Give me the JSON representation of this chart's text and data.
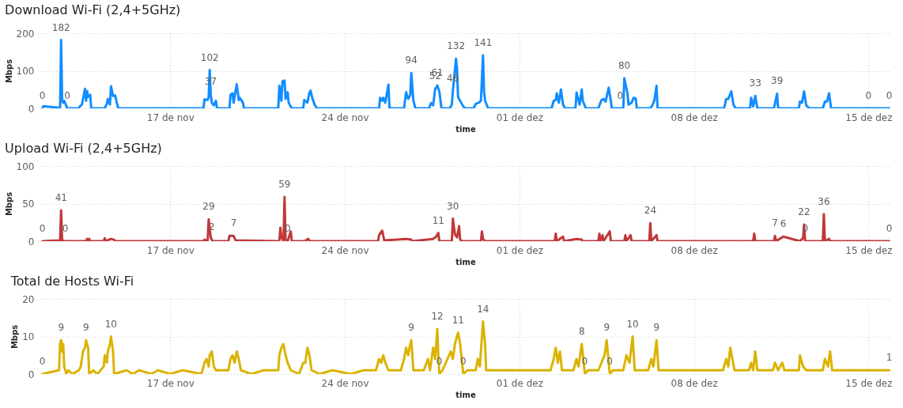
{
  "chart_data": [
    {
      "type": "line",
      "title": "Download Wi-Fi (2,4+5GHz)",
      "xlabel": "time",
      "ylabel": "Mbps",
      "color": "#118dff",
      "grid": true,
      "ylim": [
        0,
        200
      ],
      "yticks": [
        0,
        100,
        200
      ],
      "xlim": [
        "--11-11T19:00",
        "--12-15T21:00"
      ],
      "xticks": [
        {
          "value": "--11-17",
          "label": "17 de nov"
        },
        {
          "value": "--11-24",
          "label": "24 de nov"
        },
        {
          "value": "--12-01",
          "label": "01 de dez"
        },
        {
          "value": "--12-08",
          "label": "08 de dez"
        },
        {
          "value": "--12-15",
          "label": "15 de dez"
        }
      ],
      "x": [
        "--11-11T21:00",
        "--11-11T22:00",
        "--11-12T14:00",
        "--11-12T15:00",
        "--11-12T16:00",
        "--11-12T17:00",
        "--11-12T18:00",
        "--11-12T21:00",
        "--11-13T08:00",
        "--11-13T09:00",
        "--11-13T11:00",
        "--11-13T14:00",
        "--11-13T15:00",
        "--11-13T16:00",
        "--11-13T17:00",
        "--11-13T19:00",
        "--11-13T20:00",
        "--11-14T09:00",
        "--11-14T11:00",
        "--11-14T12:00",
        "--11-14T14:00",
        "--11-14T15:00",
        "--11-14T17:00",
        "--11-14T19:00",
        "--11-14T21:00",
        "--11-14T22:00",
        "--11-18T08:00",
        "--11-18T09:00",
        "--11-18T12:00",
        "--11-18T13:00",
        "--11-18T14:00",
        "--11-18T15:00",
        "--11-18T16:00",
        "--11-18T18:00",
        "--11-18T20:00",
        "--11-18T21:00",
        "--11-19T09:00",
        "--11-19T10:00",
        "--11-19T12:00",
        "--11-19T13:00",
        "--11-19T16:00",
        "--11-19T18:00",
        "--11-19T19:00",
        "--11-19T22:00",
        "--11-19T23:00",
        "--11-21T08:00",
        "--11-21T09:00",
        "--11-21T11:00",
        "--11-21T12:00",
        "--11-21T14:00",
        "--11-21T15:00",
        "--11-21T17:00",
        "--11-21T18:00",
        "--11-21T21:00",
        "--11-22T08:00",
        "--11-22T09:00",
        "--11-22T12:00",
        "--11-22T14:00",
        "--11-22T15:00",
        "--11-22T17:00",
        "--11-22T19:00",
        "--11-22T21:00",
        "--11-25T09:00",
        "--11-25T10:00",
        "--11-25T12:00",
        "--11-25T13:00",
        "--11-25T15:00",
        "--11-25T18:00",
        "--11-25T19:00",
        "--11-26T09:00",
        "--11-26T11:00",
        "--11-26T13:00",
        "--11-26T15:00",
        "--11-26T16:00",
        "--11-26T18:00",
        "--11-26T20:00",
        "--11-27T09:00",
        "--11-27T11:00",
        "--11-27T13:00",
        "--11-27T15:00",
        "--11-27T16:00",
        "--11-27T17:00",
        "--11-27T19:00",
        "--11-27T21:00",
        "--11-28T05:00",
        "--11-28T07:00",
        "--11-28T08:00",
        "--11-28T11:00",
        "--11-28T12:00",
        "--11-28T13:00",
        "--11-28T16:00",
        "--11-28T18:00",
        "--11-28T20:00",
        "--11-29T04:00",
        "--11-29T06:00",
        "--11-29T09:00",
        "--11-29T11:00",
        "--11-29T13:00",
        "--11-29T14:00",
        "--11-29T15:00",
        "--11-29T18:00",
        "--12-02T07:00",
        "--12-02T09:00",
        "--12-02T11:00",
        "--12-02T12:00",
        "--12-02T14:00",
        "--12-02T16:00",
        "--12-02T18:00",
        "--12-02T20:00",
        "--12-03T06:00",
        "--12-03T07:00",
        "--12-03T10:00",
        "--12-03T12:00",
        "--12-03T13:00",
        "--12-03T16:00",
        "--12-04T04:00",
        "--12-04T07:00",
        "--12-04T09:00",
        "--12-04T11:00",
        "--12-04T14:00",
        "--12-04T16:00",
        "--12-04T17:00",
        "--12-05T01:00",
        "--12-05T04:00",
        "--12-05T05:00",
        "--12-05T08:00",
        "--12-05T09:00",
        "--12-05T12:00",
        "--12-05T14:00",
        "--12-05T16:00",
        "--12-05T17:00",
        "--12-06T06:00",
        "--12-06T08:00",
        "--12-06T10:00",
        "--12-06T12:00",
        "--12-06T13:00",
        "--12-09T05:00",
        "--12-09T07:00",
        "--12-09T09:00",
        "--12-09T12:00",
        "--12-09T14:00",
        "--12-09T16:00",
        "--12-10T06:00",
        "--12-10T07:00",
        "--12-10T09:00",
        "--12-10T11:00",
        "--12-10T13:00",
        "--12-11T05:00",
        "--12-11T08:00",
        "--12-11T09:00",
        "--12-12T05:00",
        "--12-12T06:00",
        "--12-12T08:00",
        "--12-12T10:00",
        "--12-12T12:00",
        "--12-12T15:00",
        "--12-13T04:00",
        "--12-13T06:00",
        "--12-13T08:00",
        "--12-13T10:00",
        "--12-13T12:00",
        "--12-15T00:00",
        "--12-15T20:00"
      ],
      "values": [
        0,
        6,
        1,
        182,
        20,
        15,
        20,
        0,
        0,
        5,
        10,
        52,
        20,
        46,
        30,
        36,
        0,
        0,
        12,
        25,
        10,
        59,
        33,
        34,
        10,
        0,
        0,
        24,
        22,
        30,
        102,
        37,
        15,
        8,
        20,
        0,
        0,
        36,
        40,
        15,
        64,
        22,
        28,
        15,
        0,
        0,
        60,
        20,
        72,
        74,
        25,
        43,
        15,
        0,
        0,
        22,
        15,
        42,
        47,
        25,
        10,
        0,
        0,
        28,
        20,
        28,
        15,
        63,
        0,
        0,
        43,
        25,
        35,
        94,
        20,
        0,
        0,
        14,
        8,
        52,
        55,
        61,
        45,
        0,
        0,
        10,
        46,
        132,
        105,
        30,
        15,
        5,
        0,
        0,
        12,
        15,
        20,
        141,
        45,
        20,
        0,
        0,
        20,
        22,
        40,
        15,
        50,
        10,
        0,
        0,
        42,
        10,
        50,
        20,
        0,
        0,
        22,
        25,
        18,
        55,
        20,
        0,
        0,
        0,
        80,
        40,
        10,
        15,
        28,
        26,
        0,
        0,
        8,
        22,
        60,
        0,
        0,
        25,
        25,
        45,
        10,
        0,
        0,
        28,
        5,
        33,
        0,
        0,
        39,
        0,
        0,
        18,
        15,
        45,
        8,
        0,
        0,
        18,
        18,
        40,
        0,
        0,
        0
      ],
      "value_labels": [
        "0",
        null,
        null,
        "182",
        null,
        null,
        null,
        "0",
        null,
        null,
        null,
        null,
        null,
        null,
        null,
        null,
        null,
        null,
        null,
        null,
        null,
        null,
        null,
        null,
        null,
        null,
        null,
        null,
        null,
        null,
        "102",
        "37",
        null,
        null,
        null,
        null,
        null,
        null,
        null,
        null,
        null,
        null,
        null,
        null,
        null,
        null,
        null,
        null,
        null,
        null,
        null,
        null,
        null,
        null,
        null,
        null,
        null,
        null,
        null,
        null,
        null,
        null,
        null,
        null,
        null,
        null,
        null,
        null,
        null,
        null,
        null,
        null,
        null,
        "94",
        null,
        null,
        null,
        null,
        null,
        "52",
        null,
        "61",
        null,
        null,
        null,
        null,
        "46",
        "132",
        null,
        null,
        null,
        null,
        null,
        null,
        null,
        null,
        null,
        "141",
        null,
        null,
        null,
        null,
        null,
        null,
        null,
        null,
        null,
        null,
        null,
        null,
        null,
        null,
        null,
        null,
        null,
        null,
        null,
        null,
        null,
        null,
        null,
        null,
        "0",
        null,
        "80",
        null,
        null,
        null,
        null,
        null,
        null,
        null,
        null,
        null,
        null,
        null,
        null,
        null,
        null,
        null,
        null,
        null,
        null,
        null,
        null,
        "33",
        null,
        null,
        "39",
        null,
        null,
        null,
        null,
        null,
        null,
        null,
        null,
        null,
        null,
        null,
        null,
        "0",
        "0"
      ]
    },
    {
      "type": "line",
      "title": "Upload Wi-Fi (2,4+5GHz)",
      "xlabel": "time",
      "ylabel": "Mbps",
      "color": "#c0383a",
      "grid": true,
      "ylim": [
        0,
        100
      ],
      "yticks": [
        0,
        50,
        100
      ],
      "xlim": [
        "--11-11T19:00",
        "--12-15T21:00"
      ],
      "xticks": [
        {
          "value": "--11-17",
          "label": "17 de nov"
        },
        {
          "value": "--11-24",
          "label": "24 de nov"
        },
        {
          "value": "--12-01",
          "label": "01 de dez"
        },
        {
          "value": "--12-08",
          "label": "08 de dez"
        },
        {
          "value": "--12-15",
          "label": "15 de dez"
        }
      ],
      "x": [
        "--11-11T21:00",
        "--11-12T14:00",
        "--11-12T15:00",
        "--11-12T16:00",
        "--11-12T19:00",
        "--11-13T15:00",
        "--11-13T16:00",
        "--11-13T17:00",
        "--11-13T18:00",
        "--11-13T19:00",
        "--11-14T08:00",
        "--11-14T09:00",
        "--11-14T10:00",
        "--11-14T15:00",
        "--11-14T18:00",
        "--11-14T19:00",
        "--11-18T08:00",
        "--11-18T09:00",
        "--11-18T12:00",
        "--11-18T13:00",
        "--11-18T15:00",
        "--11-18T16:00",
        "--11-18T17:00",
        "--11-19T08:00",
        "--11-19T09:00",
        "--11-19T11:00",
        "--11-19T13:00",
        "--11-19T15:00",
        "--11-21T09:00",
        "--11-21T10:00",
        "--11-21T11:00",
        "--11-21T13:00",
        "--11-21T14:00",
        "--11-21T15:00",
        "--11-21T17:00",
        "--11-21T20:00",
        "--11-21T21:00",
        "--11-22T09:00",
        "--11-22T13:00",
        "--11-22T14:00",
        "--11-25T08:00",
        "--11-25T09:00",
        "--11-25T12:00",
        "--11-25T14:00",
        "--11-26T11:00",
        "--11-26T16:00",
        "--11-26T17:00",
        "--11-27T13:00",
        "--11-27T16:00",
        "--11-27T18:00",
        "--11-27T19:00",
        "--11-27T20:00",
        "--11-28T07:00",
        "--11-28T08:00",
        "--11-28T10:00",
        "--11-28T12:00",
        "--11-28T14:00",
        "--11-28T15:00",
        "--11-28T17:00",
        "--11-29T11:00",
        "--11-29T12:00",
        "--11-29T13:00",
        "--11-29T15:00",
        "--11-29T16:00",
        "--12-02T10:00",
        "--12-02T11:00",
        "--12-02T12:00",
        "--12-02T18:00",
        "--12-02T19:00",
        "--12-03T07:00",
        "--12-03T12:00",
        "--12-03T13:00",
        "--12-04T04:00",
        "--12-04T05:00",
        "--12-04T06:00",
        "--12-04T08:00",
        "--12-04T09:00",
        "--12-04T15:00",
        "--12-04T16:00",
        "--12-05T05:00",
        "--12-05T06:00",
        "--12-05T07:00",
        "--12-05T11:00",
        "--12-05T12:00",
        "--12-06T05:00",
        "--12-06T06:00",
        "--12-06T07:00",
        "--12-06T12:00",
        "--12-06T13:00",
        "--12-10T09:00",
        "--12-10T10:00",
        "--12-10T11:00",
        "--12-11T05:00",
        "--12-11T06:00",
        "--12-11T07:00",
        "--12-11T14:00",
        "--12-12T06:00",
        "--12-12T09:00",
        "--12-12T10:00",
        "--12-12T11:00",
        "--12-13T04:00",
        "--12-13T05:00",
        "--12-13T06:00",
        "--12-13T10:00",
        "--12-13T11:00",
        "--12-15T20:00"
      ],
      "values": [
        0,
        1,
        41,
        1,
        0,
        0,
        3,
        0,
        3,
        0,
        0,
        4,
        0,
        3,
        2,
        0,
        0,
        2,
        0,
        29,
        5,
        2,
        0,
        0,
        7,
        7,
        7,
        1,
        0,
        18,
        5,
        0,
        59,
        2,
        0,
        13,
        0,
        0,
        3,
        0,
        0,
        8,
        14,
        1,
        3,
        2,
        0,
        3,
        6,
        11,
        0,
        0,
        0,
        30,
        9,
        5,
        20,
        2,
        0,
        0,
        13,
        3,
        0,
        0,
        0,
        10,
        0,
        6,
        0,
        3,
        2,
        0,
        0,
        10,
        0,
        8,
        0,
        13,
        0,
        0,
        8,
        0,
        8,
        0,
        0,
        24,
        0,
        8,
        0,
        0,
        10,
        0,
        0,
        7,
        0,
        6,
        0,
        4,
        22,
        0,
        0,
        36,
        0,
        3,
        0,
        0
      ],
      "value_labels": [
        "0",
        null,
        "41",
        null,
        "0",
        null,
        null,
        null,
        null,
        null,
        null,
        null,
        null,
        null,
        null,
        null,
        null,
        null,
        null,
        "29",
        null,
        "2",
        null,
        null,
        null,
        null,
        "7",
        null,
        null,
        null,
        null,
        null,
        "59",
        null,
        "0",
        null,
        null,
        null,
        null,
        null,
        null,
        null,
        null,
        null,
        null,
        null,
        null,
        null,
        null,
        "11",
        null,
        null,
        null,
        "30",
        null,
        null,
        null,
        null,
        null,
        null,
        null,
        null,
        null,
        null,
        null,
        null,
        null,
        null,
        null,
        null,
        null,
        null,
        null,
        null,
        null,
        null,
        null,
        null,
        null,
        null,
        null,
        null,
        null,
        null,
        null,
        "24",
        null,
        null,
        null,
        null,
        null,
        null,
        null,
        "7",
        null,
        "6",
        null,
        null,
        "22",
        "0",
        null,
        "36",
        null,
        null,
        null,
        "0"
      ]
    },
    {
      "type": "line",
      "title": "Total de Hosts Wi-Fi",
      "xlabel": "time",
      "ylabel": "Mbps",
      "color": "#dbb300",
      "grid": true,
      "ylim": [
        0,
        20
      ],
      "yticks": [
        0,
        10,
        20
      ],
      "xlim": [
        "--11-11T19:00",
        "--12-15T21:00"
      ],
      "xticks": [
        {
          "value": "--11-17",
          "label": "17 de nov"
        },
        {
          "value": "--11-24",
          "label": "24 de nov"
        },
        {
          "value": "--12-01",
          "label": "01 de dez"
        },
        {
          "value": "--12-08",
          "label": "08 de dez"
        },
        {
          "value": "--12-15",
          "label": "15 de dez"
        }
      ],
      "x": [
        "--11-11T21:00",
        "--11-12T13:00",
        "--11-12T14:00",
        "--11-12T15:00",
        "--11-12T16:00",
        "--11-12T17:00",
        "--11-12T18:00",
        "--11-12T20:00",
        "--11-12T22:00",
        "--11-13T02:00",
        "--11-13T08:00",
        "--11-13T10:00",
        "--11-13T12:00",
        "--11-13T14:00",
        "--11-13T15:00",
        "--11-13T17:00",
        "--11-13T18:00",
        "--11-13T22:00",
        "--11-14T02:00",
        "--11-14T08:00",
        "--11-14T09:00",
        "--11-14T11:00",
        "--11-14T12:00",
        "--11-14T14:00",
        "--11-14T15:00",
        "--11-14T17:00",
        "--11-14T18:00",
        "--11-15T06:00",
        "--11-15T12:00",
        "--11-15T18:00",
        "--11-16T06:00",
        "--11-16T12:00",
        "--11-17T00:00",
        "--11-17T12:00",
        "--11-18T06:00",
        "--11-18T09:00",
        "--11-18T11:00",
        "--11-18T13:00",
        "--11-18T14:00",
        "--11-18T16:00",
        "--11-18T18:00",
        "--11-18T20:00",
        "--11-19T08:00",
        "--11-19T10:00",
        "--11-19T12:00",
        "--11-19T14:00",
        "--11-19T16:00",
        "--11-19T18:00",
        "--11-19T20:00",
        "--11-20T06:00",
        "--11-20T18:00",
        "--11-21T08:00",
        "--11-21T09:00",
        "--11-21T11:00",
        "--11-21T13:00",
        "--11-21T15:00",
        "--11-21T17:00",
        "--11-21T20:00",
        "--11-22T04:00",
        "--11-22T08:00",
        "--11-22T10:00",
        "--11-22T12:00",
        "--11-22T14:00",
        "--11-22T16:00",
        "--11-23T00:00",
        "--11-23T12:00",
        "--11-24T06:00",
        "--11-24T18:00",
        "--11-25T06:00",
        "--11-25T09:00",
        "--11-25T11:00",
        "--11-25T13:00",
        "--11-25T15:00",
        "--11-25T18:00",
        "--11-26T06:00",
        "--11-26T09:00",
        "--11-26T11:00",
        "--11-26T13:00",
        "--11-26T15:00",
        "--11-26T16:00",
        "--11-26T18:00",
        "--11-27T04:00",
        "--11-27T08:00",
        "--11-27T10:00",
        "--11-27T13:00",
        "--11-27T15:00",
        "--11-27T17:00",
        "--11-27T18:00",
        "--11-27T19:00",
        "--11-27T22:00",
        "--11-28T06:00",
        "--11-28T08:00",
        "--11-28T10:00",
        "--11-28T13:00",
        "--11-28T15:00",
        "--11-28T18:00",
        "--11-28T22:00",
        "--11-29T06:00",
        "--11-29T08:00",
        "--11-29T10:00",
        "--11-29T12:00",
        "--11-29T13:00",
        "--11-29T15:00",
        "--11-29T16:00",
        "--11-30T12:00",
        "--12-01T12:00",
        "--12-02T06:00",
        "--12-02T09:00",
        "--12-02T11:00",
        "--12-02T13:00",
        "--12-02T15:00",
        "--12-02T17:00",
        "--12-03T04:00",
        "--12-03T07:00",
        "--12-03T09:00",
        "--12-03T12:00",
        "--12-03T15:00",
        "--12-03T18:00",
        "--12-04T04:00",
        "--12-04T07:00",
        "--12-04T10:00",
        "--12-04T12:00",
        "--12-04T15:00",
        "--12-04T18:00",
        "--12-05T04:00",
        "--12-05T07:00",
        "--12-05T10:00",
        "--12-05T13:00",
        "--12-05T15:00",
        "--12-06T04:00",
        "--12-06T07:00",
        "--12-06T09:00",
        "--12-06T12:00",
        "--12-06T14:00",
        "--12-07T12:00",
        "--12-08T12:00",
        "--12-09T04:00",
        "--12-09T07:00",
        "--12-09T09:00",
        "--12-09T11:00",
        "--12-09T13:00",
        "--12-09T15:00",
        "--12-10T05:00",
        "--12-10T07:00",
        "--12-10T09:00",
        "--12-10T11:00",
        "--12-10T13:00",
        "--12-11T04:00",
        "--12-11T06:00",
        "--12-11T09:00",
        "--12-11T13:00",
        "--12-11T15:00",
        "--12-12T05:00",
        "--12-12T06:00",
        "--12-12T09:00",
        "--12-12T12:00",
        "--12-13T04:00",
        "--12-13T06:00",
        "--12-13T09:00",
        "--12-13T11:00",
        "--12-13T13:00",
        "--12-14T12:00",
        "--12-15T20:00"
      ],
      "values": [
        0,
        1,
        8,
        9,
        6,
        8,
        2,
        0,
        1,
        0,
        1,
        2,
        6,
        7,
        9,
        7,
        0,
        1,
        0,
        2,
        5,
        3,
        6,
        8,
        10,
        6,
        0,
        1,
        0,
        1,
        0,
        1,
        0,
        1,
        0,
        3,
        4,
        2,
        5,
        6,
        2,
        1,
        1,
        4,
        5,
        3,
        6,
        4,
        1,
        0,
        1,
        1,
        5,
        7,
        8,
        5,
        3,
        1,
        0,
        3,
        3,
        7,
        5,
        1,
        0,
        1,
        0,
        1,
        1,
        4,
        3,
        5,
        3,
        1,
        1,
        4,
        7,
        5,
        8,
        9,
        1,
        1,
        4,
        1,
        7,
        4,
        12,
        5,
        0,
        1,
        6,
        4,
        8,
        11,
        8,
        0,
        1,
        1,
        4,
        2,
        10,
        14,
        8,
        1,
        1,
        1,
        1,
        4,
        7,
        3,
        6,
        1,
        1,
        4,
        2,
        8,
        0,
        1,
        1,
        3,
        5,
        9,
        0,
        1,
        1,
        5,
        3,
        10,
        1,
        1,
        4,
        2,
        9,
        1,
        1,
        1,
        1,
        4,
        2,
        7,
        4,
        1,
        1,
        3,
        1,
        6,
        1,
        1,
        3,
        1,
        3,
        1,
        1,
        5,
        2,
        1,
        1,
        4,
        2,
        6,
        1,
        1,
        1
      ],
      "value_labels": [
        "0",
        null,
        null,
        "9",
        null,
        null,
        null,
        null,
        null,
        null,
        null,
        null,
        null,
        null,
        "9",
        null,
        null,
        null,
        null,
        null,
        null,
        null,
        null,
        null,
        "10",
        null,
        null,
        null,
        null,
        null,
        null,
        null,
        null,
        null,
        null,
        null,
        null,
        null,
        null,
        null,
        null,
        null,
        null,
        null,
        null,
        null,
        null,
        null,
        null,
        null,
        null,
        null,
        null,
        null,
        null,
        null,
        null,
        null,
        null,
        null,
        null,
        null,
        null,
        null,
        null,
        null,
        null,
        null,
        null,
        null,
        null,
        null,
        null,
        null,
        null,
        null,
        null,
        null,
        null,
        "9",
        null,
        null,
        null,
        null,
        null,
        null,
        "12",
        null,
        "0",
        null,
        null,
        null,
        null,
        "11",
        null,
        "0",
        null,
        null,
        null,
        null,
        null,
        "14",
        null,
        null,
        null,
        null,
        null,
        null,
        null,
        null,
        null,
        null,
        null,
        null,
        null,
        "8",
        "0",
        null,
        null,
        null,
        null,
        "9",
        "0",
        null,
        null,
        null,
        null,
        "10",
        null,
        null,
        null,
        null,
        "9",
        null,
        null,
        null,
        null,
        null,
        null,
        null,
        null,
        null,
        null,
        null,
        null,
        null,
        null,
        null,
        null,
        null,
        null,
        null,
        null,
        null,
        null,
        null,
        null,
        null,
        null,
        null,
        null,
        null,
        "1"
      ]
    }
  ]
}
